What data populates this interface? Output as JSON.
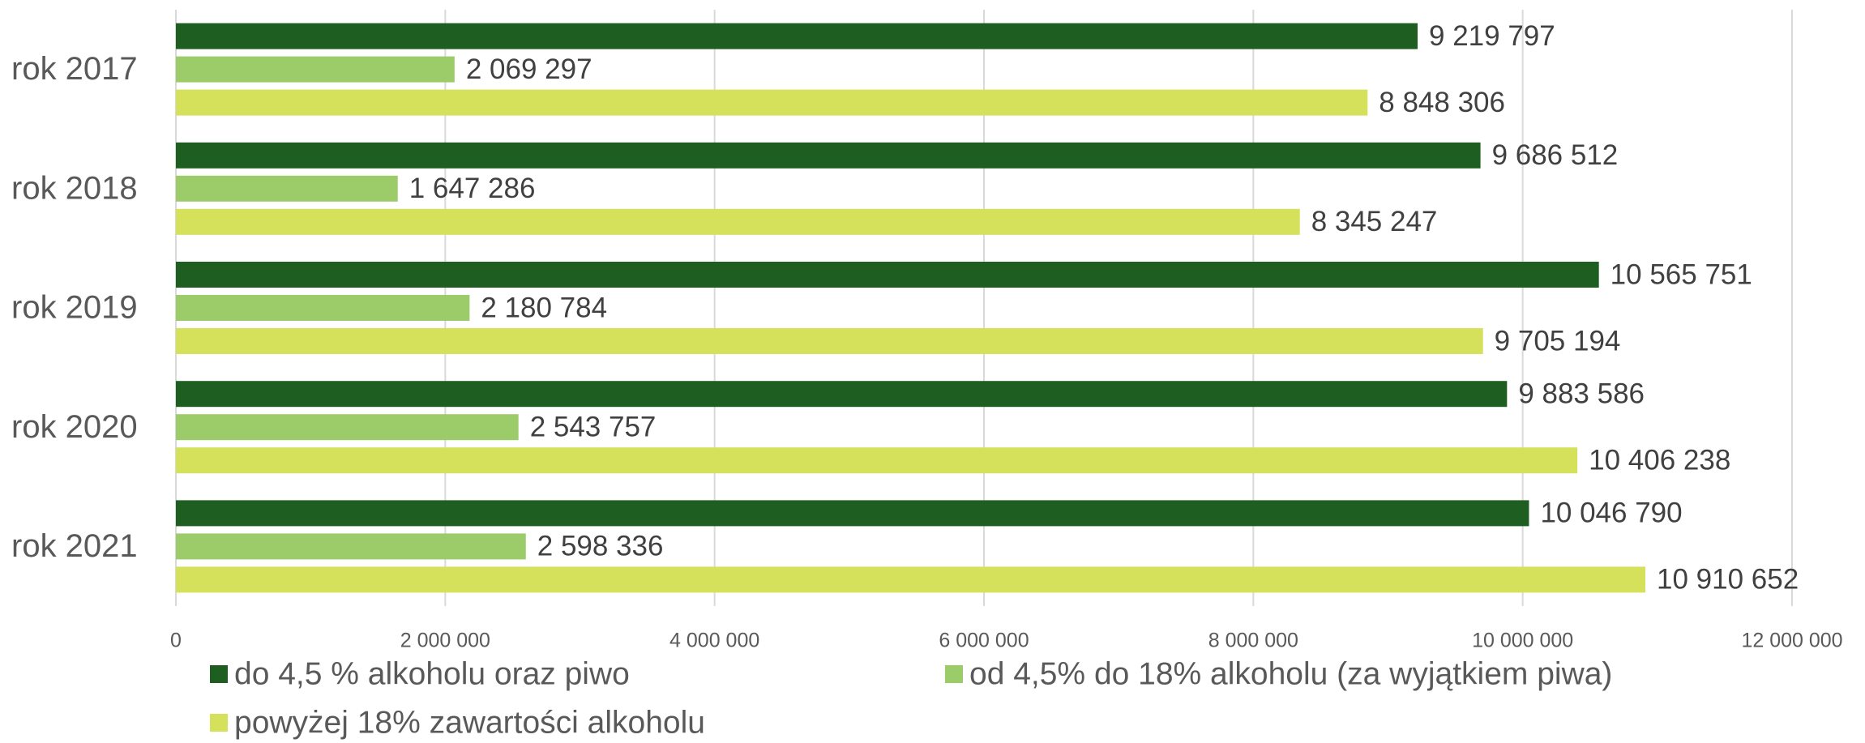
{
  "chart_data": {
    "type": "barh",
    "categories": [
      "rok 2017",
      "rok 2018",
      "rok 2019",
      "rok 2020",
      "rok 2021"
    ],
    "series": [
      {
        "name": "do 4,5 % alkoholu oraz piwo",
        "color": "#1e5e20",
        "values": [
          9219797,
          9686512,
          10565751,
          9883586,
          10046790
        ],
        "value_labels": [
          "9 219 797",
          "9 686 512",
          "10 565 751",
          "9 883 586",
          "10 046 790"
        ]
      },
      {
        "name": "od 4,5% do 18% alkoholu (za wyjątkiem piwa)",
        "color": "#9ccc6a",
        "values": [
          2069297,
          1647286,
          2180784,
          2543757,
          2598336
        ],
        "value_labels": [
          "2 069 297",
          "1 647 286",
          "2 180 784",
          "2 543 757",
          "2 598 336"
        ]
      },
      {
        "name": "powyżej 18% zawartości alkoholu",
        "color": "#d5e05b",
        "values": [
          8848306,
          8345247,
          9705194,
          10406238,
          10910652
        ],
        "value_labels": [
          "8 848 306",
          "8 345 247",
          "9 705 194",
          "10 406 238",
          "10 910 652"
        ]
      }
    ],
    "xlim": [
      0,
      12000000
    ],
    "xticks": [
      0,
      {
        "value": 2000000,
        "label": "2 000 000"
      },
      {
        "value": 4000000,
        "label": "4 000 000"
      },
      {
        "value": 6000000,
        "label": "6 000 000"
      },
      {
        "value": 8000000,
        "label": "8 000 000"
      },
      {
        "value": 10000000,
        "label": "10 000 000"
      },
      {
        "value": 12000000,
        "label": "12 000 000"
      }
    ],
    "grid": true
  }
}
